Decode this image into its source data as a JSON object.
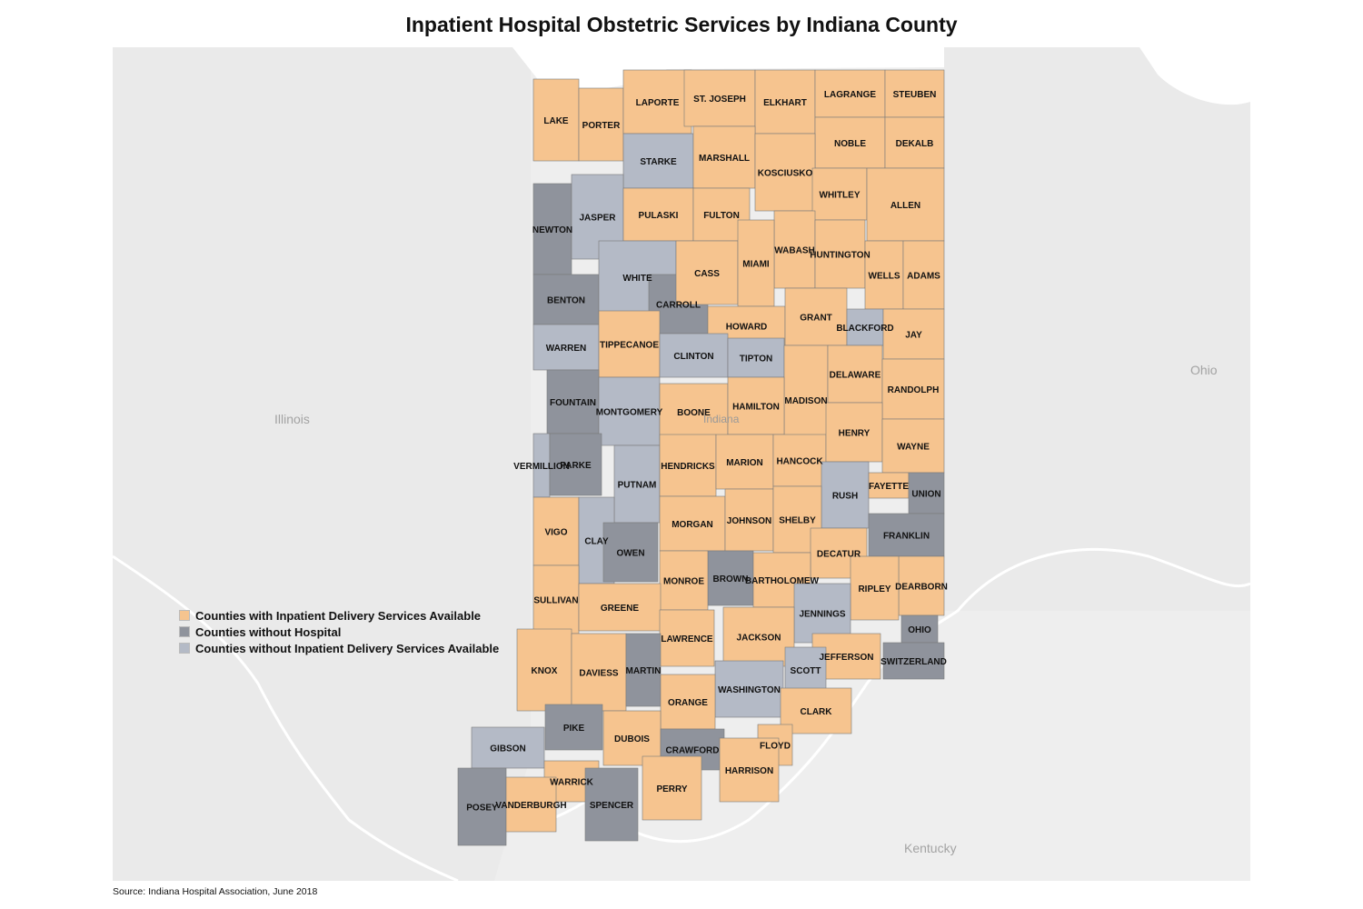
{
  "title": "Inpatient Hospital Obstetric Services by Indiana County",
  "source": "Source: Indiana Hospital Association, June 2018",
  "states": {
    "illinois": "Illinois",
    "ohio": "Ohio",
    "kentucky": "Kentucky",
    "indiana": "Indiana"
  },
  "colors": {
    "delivery": "#f6c48f",
    "no_hospital": "#8f939c",
    "no_delivery": "#b4bac6"
  },
  "legend": [
    {
      "category": "delivery",
      "label": "Counties with Inpatient Delivery Services Available"
    },
    {
      "category": "no_hospital",
      "label": "Counties without Hospital"
    },
    {
      "category": "no_delivery",
      "label": "Counties without Inpatient Delivery Services Available"
    }
  ],
  "counties": [
    {
      "name": "LAKE",
      "category": "delivery"
    },
    {
      "name": "PORTER",
      "category": "delivery"
    },
    {
      "name": "LAPORTE",
      "category": "delivery"
    },
    {
      "name": "ST. JOSEPH",
      "category": "delivery"
    },
    {
      "name": "ELKHART",
      "category": "delivery"
    },
    {
      "name": "LAGRANGE",
      "category": "delivery"
    },
    {
      "name": "STEUBEN",
      "category": "delivery"
    },
    {
      "name": "NOBLE",
      "category": "delivery"
    },
    {
      "name": "DEKALB",
      "category": "delivery"
    },
    {
      "name": "STARKE",
      "category": "no_delivery"
    },
    {
      "name": "MARSHALL",
      "category": "delivery"
    },
    {
      "name": "KOSCIUSKO",
      "category": "delivery"
    },
    {
      "name": "WHITLEY",
      "category": "delivery"
    },
    {
      "name": "ALLEN",
      "category": "delivery"
    },
    {
      "name": "NEWTON",
      "category": "no_hospital"
    },
    {
      "name": "JASPER",
      "category": "no_delivery"
    },
    {
      "name": "PULASKI",
      "category": "delivery"
    },
    {
      "name": "FULTON",
      "category": "delivery"
    },
    {
      "name": "WABASH",
      "category": "delivery"
    },
    {
      "name": "HUNTINGTON",
      "category": "delivery"
    },
    {
      "name": "WELLS",
      "category": "delivery"
    },
    {
      "name": "ADAMS",
      "category": "delivery"
    },
    {
      "name": "BENTON",
      "category": "no_hospital"
    },
    {
      "name": "WHITE",
      "category": "no_delivery"
    },
    {
      "name": "CARROLL",
      "category": "no_hospital"
    },
    {
      "name": "CASS",
      "category": "delivery"
    },
    {
      "name": "MIAMI",
      "category": "delivery"
    },
    {
      "name": "HOWARD",
      "category": "delivery"
    },
    {
      "name": "GRANT",
      "category": "delivery"
    },
    {
      "name": "BLACKFORD",
      "category": "no_delivery"
    },
    {
      "name": "JAY",
      "category": "delivery"
    },
    {
      "name": "WARREN",
      "category": "no_delivery"
    },
    {
      "name": "TIPPECANOE",
      "category": "delivery"
    },
    {
      "name": "CLINTON",
      "category": "no_delivery"
    },
    {
      "name": "TIPTON",
      "category": "no_delivery"
    },
    {
      "name": "MADISON",
      "category": "delivery"
    },
    {
      "name": "DELAWARE",
      "category": "delivery"
    },
    {
      "name": "RANDOLPH",
      "category": "delivery"
    },
    {
      "name": "FOUNTAIN",
      "category": "no_hospital"
    },
    {
      "name": "MONTGOMERY",
      "category": "no_delivery"
    },
    {
      "name": "BOONE",
      "category": "delivery"
    },
    {
      "name": "HAMILTON",
      "category": "delivery"
    },
    {
      "name": "VERMILLION",
      "category": "no_delivery"
    },
    {
      "name": "PARKE",
      "category": "no_hospital"
    },
    {
      "name": "PUTNAM",
      "category": "no_delivery"
    },
    {
      "name": "HENDRICKS",
      "category": "delivery"
    },
    {
      "name": "MARION",
      "category": "delivery"
    },
    {
      "name": "HANCOCK",
      "category": "delivery"
    },
    {
      "name": "HENRY",
      "category": "delivery"
    },
    {
      "name": "WAYNE",
      "category": "delivery"
    },
    {
      "name": "RUSH",
      "category": "no_delivery"
    },
    {
      "name": "FAYETTE",
      "category": "delivery"
    },
    {
      "name": "UNION",
      "category": "no_hospital"
    },
    {
      "name": "VIGO",
      "category": "delivery"
    },
    {
      "name": "CLAY",
      "category": "no_delivery"
    },
    {
      "name": "OWEN",
      "category": "no_hospital"
    },
    {
      "name": "MORGAN",
      "category": "delivery"
    },
    {
      "name": "JOHNSON",
      "category": "delivery"
    },
    {
      "name": "SHELBY",
      "category": "delivery"
    },
    {
      "name": "FRANKLIN",
      "category": "no_hospital"
    },
    {
      "name": "DECATUR",
      "category": "delivery"
    },
    {
      "name": "BROWN",
      "category": "no_hospital"
    },
    {
      "name": "MONROE",
      "category": "delivery"
    },
    {
      "name": "BARTHOLOMEW",
      "category": "delivery"
    },
    {
      "name": "SULLIVAN",
      "category": "delivery"
    },
    {
      "name": "GREENE",
      "category": "delivery"
    },
    {
      "name": "DEARBORN",
      "category": "delivery"
    },
    {
      "name": "RIPLEY",
      "category": "delivery"
    },
    {
      "name": "JENNINGS",
      "category": "no_delivery"
    },
    {
      "name": "OHIO",
      "category": "no_hospital"
    },
    {
      "name": "LAWRENCE",
      "category": "delivery"
    },
    {
      "name": "JACKSON",
      "category": "delivery"
    },
    {
      "name": "KNOX",
      "category": "delivery"
    },
    {
      "name": "DAVIESS",
      "category": "delivery"
    },
    {
      "name": "MARTIN",
      "category": "no_hospital"
    },
    {
      "name": "JEFFERSON",
      "category": "delivery"
    },
    {
      "name": "SWITZERLAND",
      "category": "no_hospital"
    },
    {
      "name": "SCOTT",
      "category": "no_delivery"
    },
    {
      "name": "WASHINGTON",
      "category": "no_delivery"
    },
    {
      "name": "ORANGE",
      "category": "delivery"
    },
    {
      "name": "CLARK",
      "category": "delivery"
    },
    {
      "name": "PIKE",
      "category": "no_hospital"
    },
    {
      "name": "DUBOIS",
      "category": "delivery"
    },
    {
      "name": "GIBSON",
      "category": "no_delivery"
    },
    {
      "name": "CRAWFORD",
      "category": "no_hospital"
    },
    {
      "name": "FLOYD",
      "category": "delivery"
    },
    {
      "name": "HARRISON",
      "category": "delivery"
    },
    {
      "name": "WARRICK",
      "category": "delivery"
    },
    {
      "name": "POSEY",
      "category": "no_hospital"
    },
    {
      "name": "VANDERBURGH",
      "category": "delivery"
    },
    {
      "name": "SPENCER",
      "category": "no_hospital"
    },
    {
      "name": "PERRY",
      "category": "delivery"
    }
  ]
}
